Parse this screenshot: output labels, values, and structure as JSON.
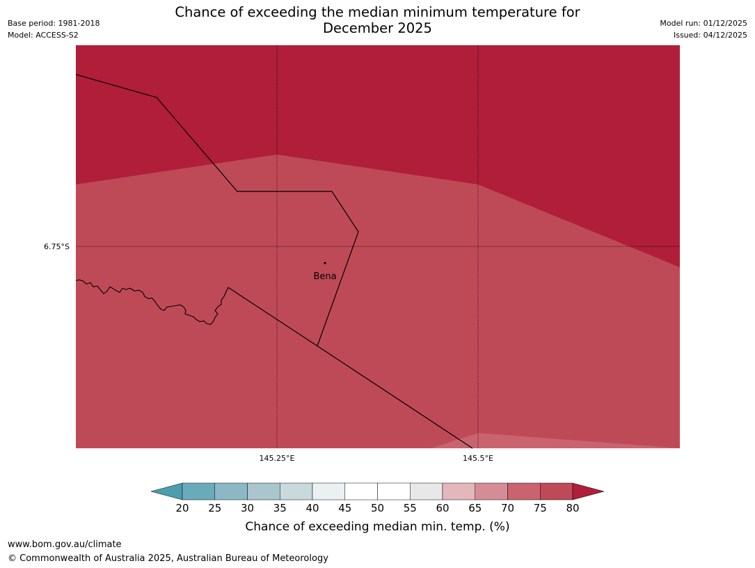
{
  "header": {
    "title_line1": "Chance of exceeding the median minimum temperature for",
    "title_line2": "December 2025",
    "base_period": "Base period: 1981-2018",
    "model": "Model: ACCESS-S2",
    "model_run": "Model run: 01/12/2025",
    "issued": "Issued: 04/12/2025"
  },
  "map": {
    "lat_label": "6.75°S",
    "lon_labels": [
      "145.25°E",
      "145.5°E"
    ],
    "place_label": "Bena"
  },
  "colorbar": {
    "ticks": [
      "20",
      "25",
      "30",
      "35",
      "40",
      "45",
      "50",
      "55",
      "60",
      "65",
      "70",
      "75",
      "80"
    ],
    "colors": {
      "below_20": "#4a9eae",
      "20_25": "#6aabbb",
      "25_30": "#8cb8c5",
      "30_35": "#a9c6cd",
      "35_40": "#c9dadd",
      "40_45": "#eaf1f3",
      "45_50": "#ffffff",
      "50_55": "#ffffff",
      "55_60": "#e8e8e8",
      "60_65": "#e3b8bd",
      "65_70": "#d68c96",
      "70_75": "#c9646f",
      "75_80": "#bf4a57",
      "above_80": "#b01e3a"
    },
    "label": "Chance of exceeding median min. temp. (%)"
  },
  "footer": {
    "url": "www.bom.gov.au/climate",
    "copyright": "© Commonwealth of Australia 2025, Australian Bureau of Meteorology"
  }
}
